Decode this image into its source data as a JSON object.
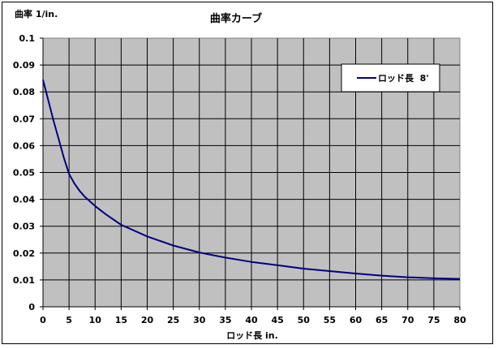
{
  "chart_data": {
    "type": "line",
    "title": "曲率カーブ",
    "ylabel": "曲率 1/in.",
    "xlabel": "ロッド長 in.",
    "xlim": [
      0,
      80
    ],
    "ylim": [
      0,
      0.1
    ],
    "x_ticks": [
      "0",
      "5",
      "10",
      "15",
      "20",
      "25",
      "30",
      "35",
      "40",
      "45",
      "50",
      "55",
      "60",
      "65",
      "70",
      "75",
      "80"
    ],
    "y_ticks": [
      "0",
      "0.01",
      "0.02",
      "0.03",
      "0.04",
      "0.05",
      "0.06",
      "0.07",
      "0.08",
      "0.09",
      "0.1"
    ],
    "grid": true,
    "legend_position": "top-right",
    "plot_background": "#c0c0c0",
    "series": [
      {
        "name": "ロッド長  8'",
        "color": "#000080",
        "x": [
          0,
          1,
          2,
          3,
          4,
          5,
          6,
          7,
          8,
          10,
          12,
          15,
          20,
          25,
          30,
          35,
          40,
          45,
          50,
          55,
          60,
          65,
          70,
          75,
          80
        ],
        "y": [
          0.0845,
          0.077,
          0.0695,
          0.0625,
          0.0555,
          0.0495,
          0.046,
          0.0432,
          0.041,
          0.0375,
          0.0345,
          0.0305,
          0.0262,
          0.0228,
          0.0202,
          0.0183,
          0.0167,
          0.0155,
          0.0142,
          0.0133,
          0.0124,
          0.0116,
          0.011,
          0.0106,
          0.0104
        ]
      }
    ]
  }
}
